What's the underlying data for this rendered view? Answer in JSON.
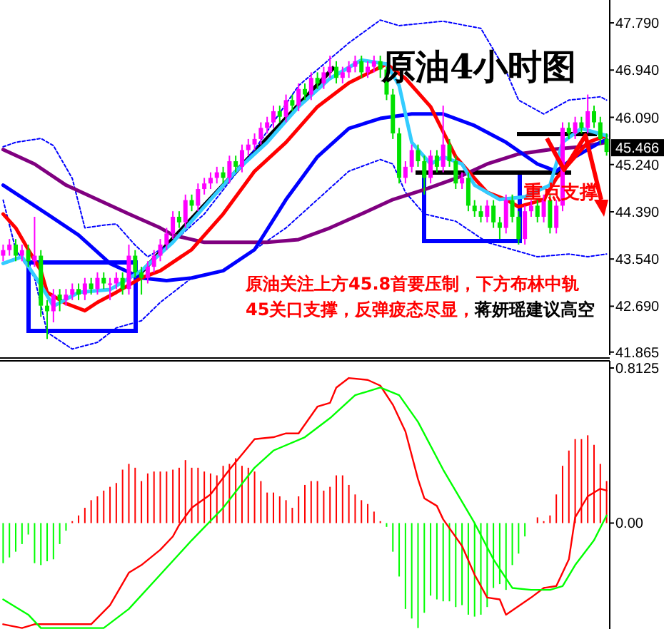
{
  "chart_data": [
    {
      "type": "candlestick",
      "title": "原油4小时图",
      "categories": [
        null,
        null,
        null,
        null,
        null,
        null,
        null,
        null,
        null,
        null,
        null,
        null,
        null,
        null,
        null,
        null,
        null,
        null,
        null,
        null,
        null,
        null,
        null,
        null,
        null,
        null,
        null,
        null,
        null,
        null,
        null,
        null,
        null,
        null,
        null,
        null,
        null,
        null,
        null,
        null,
        null,
        null,
        null,
        null,
        null,
        null,
        null,
        null,
        null,
        null,
        null,
        null,
        null,
        null,
        null,
        null,
        null,
        null,
        null,
        null,
        null,
        null,
        null,
        null,
        null,
        null,
        null,
        null,
        null,
        null,
        null,
        null,
        null,
        null,
        null,
        null,
        null,
        null,
        null,
        null,
        null,
        null,
        null,
        null,
        null,
        null,
        null,
        null,
        null,
        null,
        null,
        null,
        null,
        null,
        null,
        null,
        null
      ],
      "ohlc": [
        [
          43.6,
          43.8,
          43.5,
          43.7
        ],
        [
          43.7,
          43.9,
          43.6,
          43.8
        ],
        [
          43.8,
          43.9,
          43.5,
          43.6
        ],
        [
          43.6,
          43.8,
          43.5,
          43.7
        ],
        [
          43.7,
          43.8,
          43.4,
          43.5
        ],
        [
          43.5,
          44.3,
          43.4,
          43.6
        ],
        [
          43.6,
          43.7,
          42.5,
          42.7
        ],
        [
          42.7,
          42.8,
          42.1,
          42.6
        ],
        [
          42.6,
          43.0,
          42.4,
          42.9
        ],
        [
          42.9,
          43.0,
          42.6,
          42.8
        ],
        [
          42.8,
          43.0,
          42.7,
          42.9
        ],
        [
          42.9,
          43.1,
          42.8,
          43.0
        ],
        [
          43.0,
          43.1,
          42.8,
          42.9
        ],
        [
          42.9,
          43.2,
          42.8,
          43.1
        ],
        [
          43.1,
          43.2,
          42.9,
          43.0
        ],
        [
          43.0,
          43.3,
          42.9,
          43.2
        ],
        [
          43.2,
          43.3,
          43.0,
          43.1
        ],
        [
          43.1,
          43.2,
          42.8,
          43.1
        ],
        [
          43.1,
          43.3,
          43.0,
          43.2
        ],
        [
          43.2,
          43.3,
          42.9,
          43.0
        ],
        [
          43.0,
          43.8,
          42.9,
          43.6
        ],
        [
          43.6,
          43.7,
          43.2,
          43.3
        ],
        [
          43.3,
          43.4,
          42.9,
          43.2
        ],
        [
          43.2,
          43.5,
          43.1,
          43.4
        ],
        [
          43.4,
          43.7,
          43.3,
          43.6
        ],
        [
          43.6,
          43.9,
          43.5,
          43.8
        ],
        [
          43.8,
          44.1,
          43.7,
          44.0
        ],
        [
          44.0,
          44.4,
          43.9,
          44.3
        ],
        [
          44.3,
          44.4,
          44.1,
          44.2
        ],
        [
          44.2,
          44.7,
          44.1,
          44.6
        ],
        [
          44.6,
          44.7,
          44.4,
          44.5
        ],
        [
          44.5,
          44.9,
          44.4,
          44.8
        ],
        [
          44.8,
          45.0,
          44.7,
          44.9
        ],
        [
          44.9,
          45.1,
          44.8,
          45.0
        ],
        [
          45.0,
          45.2,
          44.9,
          45.1
        ],
        [
          45.1,
          45.2,
          44.9,
          45.0
        ],
        [
          45.0,
          45.4,
          44.9,
          45.3
        ],
        [
          45.3,
          45.4,
          45.1,
          45.2
        ],
        [
          45.2,
          45.6,
          45.1,
          45.5
        ],
        [
          45.5,
          45.7,
          45.4,
          45.6
        ],
        [
          45.6,
          45.8,
          45.5,
          45.7
        ],
        [
          45.7,
          46.0,
          45.6,
          45.9
        ],
        [
          45.9,
          46.1,
          45.8,
          46.0
        ],
        [
          46.0,
          46.3,
          45.9,
          46.2
        ],
        [
          46.2,
          46.3,
          46.0,
          46.1
        ],
        [
          46.1,
          46.5,
          46.0,
          46.4
        ],
        [
          46.4,
          46.5,
          46.2,
          46.3
        ],
        [
          46.3,
          46.7,
          46.2,
          46.6
        ],
        [
          46.6,
          46.7,
          46.4,
          46.5
        ],
        [
          46.5,
          46.9,
          46.4,
          46.8
        ],
        [
          46.8,
          46.9,
          46.6,
          46.7
        ],
        [
          46.7,
          47.0,
          46.6,
          46.9
        ],
        [
          46.9,
          47.2,
          46.8,
          47.0
        ],
        [
          47.0,
          47.1,
          46.7,
          46.8
        ],
        [
          46.8,
          47.0,
          46.7,
          46.9
        ],
        [
          46.9,
          47.1,
          46.8,
          47.0
        ],
        [
          47.0,
          47.2,
          46.9,
          47.1
        ],
        [
          47.1,
          47.2,
          46.8,
          46.9
        ],
        [
          46.9,
          47.1,
          46.8,
          47.0
        ],
        [
          47.0,
          47.2,
          46.9,
          47.1
        ],
        [
          47.1,
          47.2,
          46.8,
          46.95
        ],
        [
          46.95,
          47.0,
          46.4,
          46.5
        ],
        [
          46.5,
          46.6,
          45.7,
          45.8
        ],
        [
          45.8,
          45.9,
          44.9,
          45.0
        ],
        [
          45.0,
          45.3,
          44.9,
          45.2
        ],
        [
          45.2,
          45.6,
          45.1,
          45.5
        ],
        [
          45.5,
          45.6,
          45.2,
          45.3
        ],
        [
          45.3,
          45.4,
          44.7,
          45.0
        ],
        [
          45.0,
          45.5,
          44.9,
          45.4
        ],
        [
          45.4,
          45.5,
          45.1,
          45.2
        ],
        [
          45.2,
          46.3,
          45.1,
          45.6
        ],
        [
          45.6,
          45.7,
          45.2,
          45.3
        ],
        [
          45.3,
          45.4,
          44.8,
          44.9
        ],
        [
          44.9,
          45.1,
          44.8,
          45.0
        ],
        [
          45.0,
          45.1,
          44.4,
          44.5
        ],
        [
          44.5,
          44.6,
          44.3,
          44.4
        ],
        [
          44.4,
          44.5,
          44.2,
          44.3
        ],
        [
          44.3,
          44.6,
          44.2,
          44.5
        ],
        [
          44.5,
          44.6,
          44.1,
          44.2
        ],
        [
          44.2,
          44.3,
          43.9,
          44.1
        ],
        [
          44.1,
          44.7,
          44.0,
          44.6
        ],
        [
          44.6,
          44.7,
          44.2,
          44.3
        ],
        [
          44.3,
          44.4,
          43.8,
          43.9
        ],
        [
          43.9,
          44.5,
          43.8,
          44.4
        ],
        [
          44.4,
          44.6,
          44.3,
          44.5
        ],
        [
          44.5,
          44.6,
          44.2,
          44.3
        ],
        [
          44.3,
          44.7,
          44.2,
          44.6
        ],
        [
          44.6,
          44.7,
          44.0,
          44.1
        ],
        [
          44.1,
          44.6,
          44.0,
          44.5
        ],
        [
          44.5,
          46.0,
          44.4,
          45.9
        ],
        [
          45.9,
          46.0,
          45.7,
          45.8
        ],
        [
          45.8,
          46.1,
          45.7,
          46.0
        ],
        [
          46.0,
          46.1,
          45.8,
          45.9
        ],
        [
          45.9,
          46.5,
          45.8,
          46.2
        ],
        [
          46.2,
          46.3,
          45.9,
          46.0
        ],
        [
          46.0,
          46.1,
          45.6,
          45.7
        ],
        [
          45.7,
          45.8,
          45.4,
          45.466
        ]
      ],
      "series": [
        {
          "type": "line",
          "color": "#0000ff",
          "line_style": "dotted",
          "values": [
            45.56,
            null,
            45.64,
            null,
            null,
            null,
            45.71,
            null,
            45.58,
            null,
            null,
            44.99,
            null,
            44.1,
            null,
            null,
            44.15,
            null,
            44.17,
            null,
            null,
            43.79,
            null,
            43.58,
            null,
            null,
            null,
            43.84,
            null,
            null,
            null,
            null,
            44.35,
            null,
            null,
            null,
            null,
            null,
            null,
            null,
            45.51,
            null,
            null,
            null,
            null,
            null,
            null,
            46.66,
            null,
            null,
            null,
            null,
            null,
            null,
            null,
            47.43,
            null,
            null,
            null,
            null,
            47.84,
            null,
            null,
            47.74,
            null,
            null,
            null,
            null,
            null,
            null,
            47.82,
            null,
            null,
            null,
            null,
            null,
            47.69,
            null,
            null,
            null,
            46.92,
            null,
            46.4,
            null,
            null,
            null,
            46.15,
            null,
            null,
            null,
            46.4,
            null,
            null,
            null,
            null,
            46.46,
            46.4
          ]
        },
        {
          "type": "line",
          "color": "#0000ff",
          "line_style": "dotted",
          "values": [
            44.6,
            null,
            43.71,
            null,
            null,
            43.2,
            null,
            42.22,
            null,
            null,
            null,
            41.92,
            null,
            null,
            null,
            42.04,
            null,
            null,
            42.3,
            null,
            null,
            null,
            42.43,
            null,
            null,
            42.76,
            null,
            null,
            null,
            null,
            43.2,
            null,
            null,
            null,
            null,
            43.33,
            null,
            null,
            null,
            null,
            43.71,
            null,
            null,
            null,
            null,
            44.1,
            null,
            null,
            null,
            null,
            44.61,
            null,
            null,
            null,
            null,
            45.12,
            null,
            null,
            null,
            null,
            45.33,
            null,
            45.25,
            null,
            44.74,
            null,
            null,
            44.35,
            null,
            null,
            null,
            null,
            44.22,
            null,
            null,
            null,
            null,
            43.84,
            null,
            null,
            null,
            43.71,
            null,
            null,
            null,
            43.58,
            null,
            null,
            null,
            null,
            43.63,
            null,
            null,
            43.58,
            null,
            null,
            43.63
          ]
        },
        {
          "type": "line",
          "color": "#800080",
          "line_style": "solid",
          "values": [
            45.51,
            null,
            null,
            null,
            null,
            45.25,
            null,
            null,
            null,
            null,
            44.87,
            null,
            null,
            null,
            null,
            44.61,
            null,
            null,
            null,
            null,
            44.35,
            null,
            null,
            null,
            null,
            44.1,
            null,
            43.97,
            null,
            null,
            null,
            null,
            43.84,
            null,
            null,
            null,
            null,
            43.84,
            null,
            null,
            null,
            null,
            43.84,
            null,
            null,
            null,
            null,
            43.89,
            null,
            null,
            null,
            null,
            44.1,
            null,
            null,
            null,
            null,
            44.35,
            null,
            null,
            null,
            null,
            44.61,
            null,
            null,
            null,
            null,
            44.79,
            null,
            null,
            null,
            null,
            44.99,
            null,
            null,
            null,
            null,
            45.25,
            null,
            null,
            null,
            null,
            45.43,
            null,
            null,
            null,
            null,
            45.51,
            null,
            null,
            null,
            null,
            45.56,
            null,
            null,
            null,
            45.64
          ]
        },
        {
          "type": "line",
          "color": "#0000ff",
          "line_style": "solid",
          "values": [
            44.87,
            null,
            null,
            null,
            null,
            null,
            null,
            44.35,
            null,
            null,
            null,
            null,
            43.97,
            null,
            null,
            null,
            null,
            43.46,
            null,
            null,
            null,
            null,
            43.2,
            null,
            null,
            null,
            43.15,
            null,
            null,
            null,
            43.2,
            null,
            null,
            null,
            null,
            43.33,
            null,
            null,
            null,
            null,
            43.71,
            null,
            null,
            null,
            null,
            44.61,
            null,
            null,
            null,
            null,
            45.38,
            null,
            null,
            null,
            null,
            45.89,
            null,
            null,
            null,
            null,
            46.07,
            null,
            null,
            null,
            null,
            46.15,
            null,
            null,
            null,
            null,
            46.15,
            null,
            null,
            null,
            null,
            45.94,
            null,
            null,
            null,
            null,
            45.64,
            null,
            null,
            null,
            null,
            45.25,
            null,
            null,
            45.12,
            null,
            null,
            45.38,
            null,
            null,
            null,
            45.64,
            45.69
          ]
        },
        {
          "type": "line",
          "color": "#ff0000",
          "line_style": "solid",
          "values": [
            44.35,
            null,
            44.1,
            null,
            43.71,
            null,
            43.33,
            42.94,
            null,
            null,
            42.74,
            null,
            null,
            42.61,
            null,
            42.76,
            null,
            null,
            42.94,
            null,
            null,
            null,
            43.2,
            null,
            null,
            43.33,
            null,
            null,
            null,
            null,
            43.71,
            null,
            null,
            null,
            null,
            44.35,
            null,
            null,
            null,
            null,
            45.12,
            null,
            null,
            null,
            null,
            45.64,
            null,
            null,
            null,
            null,
            46.28,
            null,
            null,
            null,
            null,
            46.71,
            null,
            null,
            null,
            null,
            null,
            47.05,
            null,
            null,
            46.79,
            null,
            null,
            null,
            46.28,
            null,
            null,
            null,
            45.38,
            null,
            null,
            44.99,
            null,
            44.74,
            null,
            null,
            44.61,
            null,
            44.48,
            null,
            null,
            null,
            44.61,
            null,
            44.99,
            null,
            null,
            45.38,
            null,
            45.64,
            null,
            null,
            45.76
          ]
        },
        {
          "type": "line",
          "color": "#33ccff",
          "line_style": "solid",
          "values": [
            43.46,
            null,
            null,
            43.58,
            null,
            null,
            43.07,
            null,
            42.69,
            null,
            null,
            null,
            42.94,
            null,
            null,
            null,
            null,
            42.99,
            null,
            null,
            null,
            null,
            43.33,
            null,
            null,
            null,
            null,
            43.84,
            null,
            null,
            null,
            null,
            44.48,
            null,
            null,
            null,
            null,
            45.12,
            null,
            null,
            null,
            null,
            45.64,
            null,
            null,
            null,
            null,
            46.28,
            null,
            null,
            null,
            null,
            46.79,
            null,
            null,
            null,
            null,
            47.12,
            null,
            null,
            null,
            47.05,
            null,
            46.66,
            null,
            45.64,
            null,
            null,
            45.25,
            null,
            45.38,
            null,
            null,
            45.25,
            null,
            44.87,
            null,
            null,
            null,
            44.61,
            null,
            null,
            null,
            44.66,
            null,
            null,
            null,
            44.87,
            null,
            45.64,
            null,
            null,
            45.89,
            null,
            null,
            null,
            45.76
          ]
        }
      ],
      "colors": [
        "#ff00ff",
        "#ff00ff",
        "#00e000",
        "#ff00ff",
        "#00e000",
        "#ff00ff",
        "#00e000",
        "#00e000",
        "#ff00ff",
        "#00e000",
        "#ff00ff",
        "#ff00ff",
        "#00e000",
        "#ff00ff",
        "#00e000",
        "#ff00ff",
        "#00e000",
        "#ff00ff",
        "#ff00ff",
        "#00e000",
        "#ff00ff",
        "#00e000",
        "#00e000",
        "#ff00ff",
        "#ff00ff",
        "#ff00ff",
        "#ff00ff",
        "#ff00ff",
        "#00e000",
        "#ff00ff",
        "#00e000",
        "#ff00ff",
        "#ff00ff",
        "#ff00ff",
        "#ff00ff",
        "#00e000",
        "#ff00ff",
        "#00e000",
        "#ff00ff",
        "#ff00ff",
        "#ff00ff",
        "#ff00ff",
        "#ff00ff",
        "#ff00ff",
        "#00e000",
        "#ff00ff",
        "#00e000",
        "#ff00ff",
        "#00e000",
        "#ff00ff",
        "#00e000",
        "#ff00ff",
        "#ff00ff",
        "#00e000",
        "#ff00ff",
        "#ff00ff",
        "#ff00ff",
        "#00e000",
        "#ff00ff",
        "#ff00ff",
        "#00e000",
        "#00e000",
        "#00e000",
        "#00e000",
        "#ff00ff",
        "#ff00ff",
        "#00e000",
        "#00e000",
        "#ff00ff",
        "#00e000",
        "#ff00ff",
        "#00e000",
        "#00e000",
        "#ff00ff",
        "#00e000",
        "#00e000",
        "#00e000",
        "#ff00ff",
        "#00e000",
        "#00e000",
        "#ff00ff",
        "#00e000",
        "#00e000",
        "#ff00ff",
        "#ff00ff",
        "#00e000",
        "#ff00ff",
        "#00e000",
        "#ff00ff",
        "#ff00ff",
        "#00e000",
        "#ff00ff",
        "#00e000",
        "#ff00ff",
        "#00e000",
        "#00e000",
        "#00e000"
      ],
      "ylim": [
        41.81,
        48.15
      ],
      "yticks": [
        {
          "value": 47.79,
          "label": "47.790"
        },
        {
          "value": 46.94,
          "label": "46.940"
        },
        {
          "value": 46.09,
          "label": "46.090"
        },
        {
          "value": 45.24,
          "label": "45.240"
        },
        {
          "value": 44.39,
          "label": "44.390"
        },
        {
          "value": 43.54,
          "label": "43.540"
        },
        {
          "value": 42.69,
          "label": "42.690"
        },
        41.865
      ],
      "tick_labels": "y",
      "annotations": [
        "原油关注上方45.8首要压制，下方布林中轨",
        "45关口支撑，反弹疲态尽显，",
        "蒋妍瑶建议高空",
        "重点支撑",
        "45.466"
      ]
    },
    {
      "type": "bar",
      "categories": [
        null,
        null,
        null,
        null,
        null,
        null,
        null,
        null,
        null,
        null,
        null,
        null,
        null,
        null,
        null,
        null,
        null,
        null,
        null,
        null,
        null,
        null,
        null,
        null,
        null,
        null,
        null,
        null,
        null,
        null,
        null,
        null,
        null,
        null,
        null,
        null,
        null,
        null,
        null,
        null,
        null,
        null,
        null,
        null,
        null,
        null,
        null,
        null,
        null,
        null,
        null,
        null,
        null,
        null,
        null,
        null,
        null,
        null,
        null,
        null,
        null,
        null,
        null,
        null,
        null,
        null,
        null,
        null,
        null,
        null,
        null,
        null,
        null,
        null,
        null,
        null,
        null,
        null,
        null,
        null,
        null,
        null,
        null,
        null,
        null,
        null,
        null,
        null,
        null,
        null,
        null,
        null,
        null,
        null,
        null,
        null,
        null
      ],
      "series": [
        {
          "type": "bar",
          "values": [
            -0.21,
            -0.18,
            -0.15,
            -0.11,
            -0.06,
            -0.21,
            -0.22,
            -0.2,
            -0.19,
            -0.11,
            -0.04,
            0.01,
            0.04,
            0.08,
            0.12,
            0.14,
            0.17,
            0.19,
            0.21,
            0.28,
            0.31,
            0.29,
            0.22,
            0.26,
            0.27,
            0.27,
            0.27,
            0.28,
            0.29,
            0.33,
            0.29,
            0.29,
            0.27,
            0.26,
            0.25,
            0.3,
            0.31,
            0.34,
            0.3,
            0.29,
            0.27,
            0.22,
            0.16,
            0.16,
            0.14,
            0.12,
            0.08,
            0.14,
            0.2,
            0.22,
            0.22,
            0.17,
            0.19,
            0.25,
            0.25,
            0.2,
            0.15,
            0.12,
            0.1,
            0.06,
            0.01,
            -0.02,
            -0.15,
            -0.28,
            -0.45,
            -0.5,
            -0.55,
            -0.47,
            -0.38,
            -0.4,
            -0.41,
            -0.41,
            -0.44,
            -0.43,
            -0.48,
            -0.49,
            -0.48,
            -0.44,
            -0.34,
            -0.32,
            -0.35,
            -0.22,
            -0.16,
            -0.07,
            null,
            0.03,
            0.01,
            0.04,
            0.15,
            0.3,
            0.38,
            0.44,
            0.44,
            0.46,
            0.41,
            0.31,
            0.22
          ],
          "colors": [
            "#00ff00",
            "#00ff00",
            "#00ff00",
            "#00ff00",
            "#00ff00",
            "#00ff00",
            "#00ff00",
            "#00ff00",
            "#00ff00",
            "#00ff00",
            "#00ff00",
            "#ff0000",
            "#ff0000",
            "#ff0000",
            "#ff0000",
            "#ff0000",
            "#ff0000",
            "#ff0000",
            "#ff0000",
            "#ff0000",
            "#ff0000",
            "#ff0000",
            "#ff0000",
            "#ff0000",
            "#ff0000",
            "#ff0000",
            "#ff0000",
            "#ff0000",
            "#ff0000",
            "#ff0000",
            "#ff0000",
            "#ff0000",
            "#ff0000",
            "#ff0000",
            "#ff0000",
            "#ff0000",
            "#ff0000",
            "#ff0000",
            "#ff0000",
            "#ff0000",
            "#ff0000",
            "#ff0000",
            "#ff0000",
            "#ff0000",
            "#ff0000",
            "#ff0000",
            "#ff0000",
            "#ff0000",
            "#ff0000",
            "#ff0000",
            "#ff0000",
            "#ff0000",
            "#ff0000",
            "#ff0000",
            "#ff0000",
            "#ff0000",
            "#ff0000",
            "#ff0000",
            "#ff0000",
            "#ff0000",
            "#ff0000",
            "#00ff00",
            "#00ff00",
            "#00ff00",
            "#00ff00",
            "#00ff00",
            "#00ff00",
            "#00ff00",
            "#00ff00",
            "#00ff00",
            "#00ff00",
            "#00ff00",
            "#00ff00",
            "#00ff00",
            "#00ff00",
            "#00ff00",
            "#00ff00",
            "#00ff00",
            "#00ff00",
            "#00ff00",
            "#00ff00",
            "#00ff00",
            "#00ff00",
            "#00ff00",
            "#ff0000",
            "#ff0000",
            "#ff0000",
            "#ff0000",
            "#ff0000",
            "#ff0000",
            "#ff0000",
            "#ff0000",
            "#ff0000",
            "#ff0000",
            "#ff0000",
            "#ff0000",
            "#ff0000"
          ]
        },
        {
          "type": "line",
          "color": "#ff0000",
          "values": [
            -0.53,
            null,
            null,
            -0.55,
            null,
            -0.53,
            null,
            null,
            null,
            null,
            null,
            null,
            null,
            null,
            -0.53,
            null,
            null,
            -0.43,
            null,
            null,
            -0.26,
            null,
            -0.22,
            null,
            null,
            -0.14,
            null,
            -0.07,
            -0.01,
            null,
            0.08,
            null,
            null,
            0.15,
            null,
            null,
            0.28,
            null,
            null,
            0.4,
            0.44,
            null,
            null,
            0.45,
            null,
            0.47,
            null,
            0.47,
            null,
            null,
            0.61,
            null,
            0.63,
            0.71,
            null,
            0.76,
            null,
            null,
            0.75,
            null,
            0.72,
            null,
            0.62,
            null,
            0.48,
            null,
            0.23,
            0.13,
            null,
            0.09,
            0.02,
            null,
            null,
            -0.12,
            null,
            -0.27,
            null,
            -0.39,
            null,
            -0.4,
            -0.48,
            null,
            null,
            null,
            -0.39,
            null,
            -0.34,
            null,
            -0.33,
            null,
            -0.19,
            0.03,
            null,
            0.14,
            null,
            0.18,
            0.17
          ]
        },
        {
          "type": "line",
          "color": "#00ff00",
          "values": [
            -0.4,
            null,
            null,
            null,
            -0.48,
            null,
            -0.55,
            null,
            null,
            null,
            null,
            null,
            null,
            null,
            null,
            null,
            -0.55,
            null,
            null,
            null,
            -0.45,
            null,
            null,
            null,
            null,
            -0.27,
            null,
            null,
            null,
            null,
            -0.09,
            null,
            null,
            null,
            null,
            0.08,
            null,
            null,
            null,
            null,
            0.29,
            null,
            null,
            0.38,
            null,
            null,
            null,
            null,
            0.45,
            null,
            null,
            null,
            0.55,
            null,
            null,
            null,
            0.67,
            null,
            null,
            null,
            0.71,
            null,
            null,
            0.67,
            null,
            null,
            0.53,
            null,
            null,
            null,
            0.28,
            null,
            null,
            null,
            null,
            0,
            null,
            null,
            -0.19,
            null,
            null,
            -0.34,
            null,
            null,
            -0.35,
            null,
            null,
            -0.35,
            null,
            -0.33,
            null,
            -0.22,
            null,
            null,
            -0.09,
            null,
            0.04
          ]
        }
      ],
      "ylim": [
        -0.555,
        0.835
      ],
      "yticks": [
        0.8125,
        {
          "value": 0,
          "label": "0.00"
        }
      ],
      "tick_labels": "y"
    }
  ]
}
